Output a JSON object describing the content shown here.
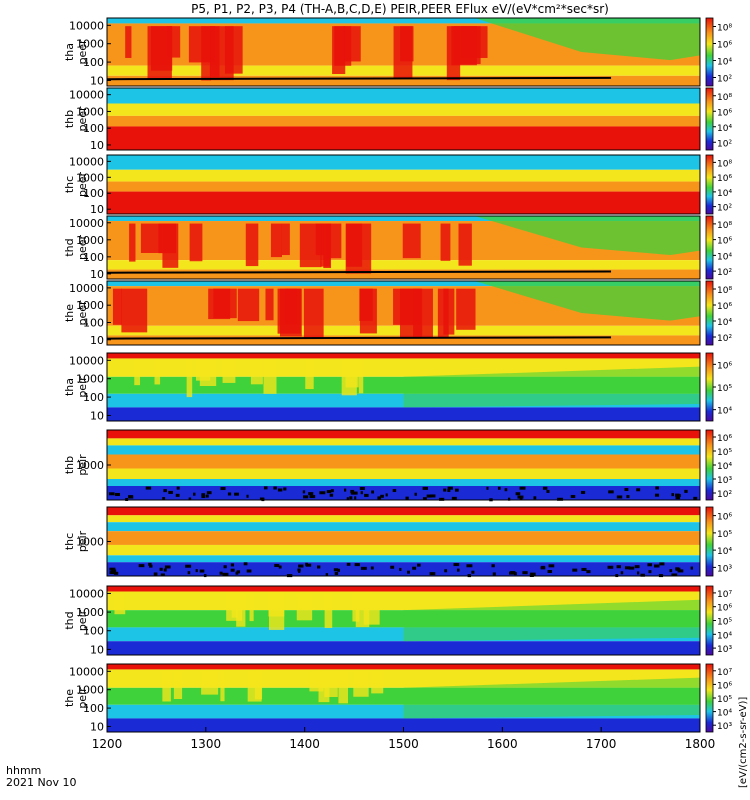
{
  "title": "P5, P1, P2, P3, P4 (TH-A,B,C,D,E) PEIR,PEER EFlux eV/(eV*cm²*sec*sr)",
  "xaxis": {
    "label_top": "hhmm",
    "label_bottom": "2021 Nov 10",
    "ticks": [
      "1200",
      "1300",
      "1400",
      "1500",
      "1600",
      "1700",
      "1800"
    ]
  },
  "colorbar_unit_label": "[eV/(cm2-s-sr-eV)]",
  "chart_data": {
    "type": "heatmap",
    "x": {
      "unit": "hhmm",
      "range": [
        "1200",
        "1800"
      ]
    },
    "y_scale": "log",
    "panels": [
      {
        "name": "tha peer",
        "label1": "tha",
        "label2": "peer",
        "yticks": [
          "10",
          "100",
          "1000",
          "10000"
        ],
        "cbar_ticks": [
          "10²",
          "10⁴",
          "10⁶",
          "10⁸"
        ]
      },
      {
        "name": "thb peer",
        "label1": "thb",
        "label2": "peer",
        "yticks": [
          "10",
          "100",
          "1000",
          "10000"
        ],
        "cbar_ticks": [
          "10²",
          "10⁴",
          "10⁶",
          "10⁸"
        ]
      },
      {
        "name": "thc peer",
        "label1": "thc",
        "label2": "peer",
        "yticks": [
          "10",
          "100",
          "1000",
          "10000"
        ],
        "cbar_ticks": [
          "10²",
          "10⁴",
          "10⁶",
          "10⁸"
        ]
      },
      {
        "name": "thd peer",
        "label1": "thd",
        "label2": "peer",
        "yticks": [
          "10",
          "100",
          "1000",
          "10000"
        ],
        "cbar_ticks": [
          "10²",
          "10⁴",
          "10⁶",
          "10⁸"
        ]
      },
      {
        "name": "the peer",
        "label1": "the",
        "label2": "peer",
        "yticks": [
          "10",
          "100",
          "1000",
          "10000"
        ],
        "cbar_ticks": [
          "10²",
          "10⁴",
          "10⁶",
          "10⁸"
        ]
      },
      {
        "name": "tha peir",
        "label1": "tha",
        "label2": "peir",
        "yticks": [
          "10",
          "100",
          "1000",
          "10000"
        ],
        "cbar_ticks": [
          "10⁴",
          "10⁵",
          "10⁶"
        ]
      },
      {
        "name": "thb peir",
        "label1": "thb",
        "label2": "peir",
        "yticks": [
          "1000"
        ],
        "cbar_ticks": [
          "10²",
          "10³",
          "10⁴",
          "10⁵",
          "10⁶"
        ]
      },
      {
        "name": "thc peir",
        "label1": "thc",
        "label2": "peir",
        "yticks": [
          "1000"
        ],
        "cbar_ticks": [
          "10³",
          "10⁴",
          "10⁵",
          "10⁶"
        ]
      },
      {
        "name": "thd peir",
        "label1": "thd",
        "label2": "peir",
        "yticks": [
          "10",
          "100",
          "1000",
          "10000"
        ],
        "cbar_ticks": [
          "10³",
          "10⁴",
          "10⁵",
          "10⁶",
          "10⁷"
        ]
      },
      {
        "name": "the peir",
        "label1": "the",
        "label2": "peir",
        "yticks": [
          "10",
          "100",
          "1000",
          "10000"
        ],
        "cbar_ticks": [
          "10³",
          "10⁴",
          "10⁵",
          "10⁶",
          "10⁷"
        ]
      }
    ]
  },
  "colors": {
    "red": "#e8120a",
    "orange": "#f7951b",
    "yellow": "#f4e61c",
    "green": "#3fd23a",
    "cyan": "#1ec4e6",
    "blue": "#1a2ad4"
  }
}
